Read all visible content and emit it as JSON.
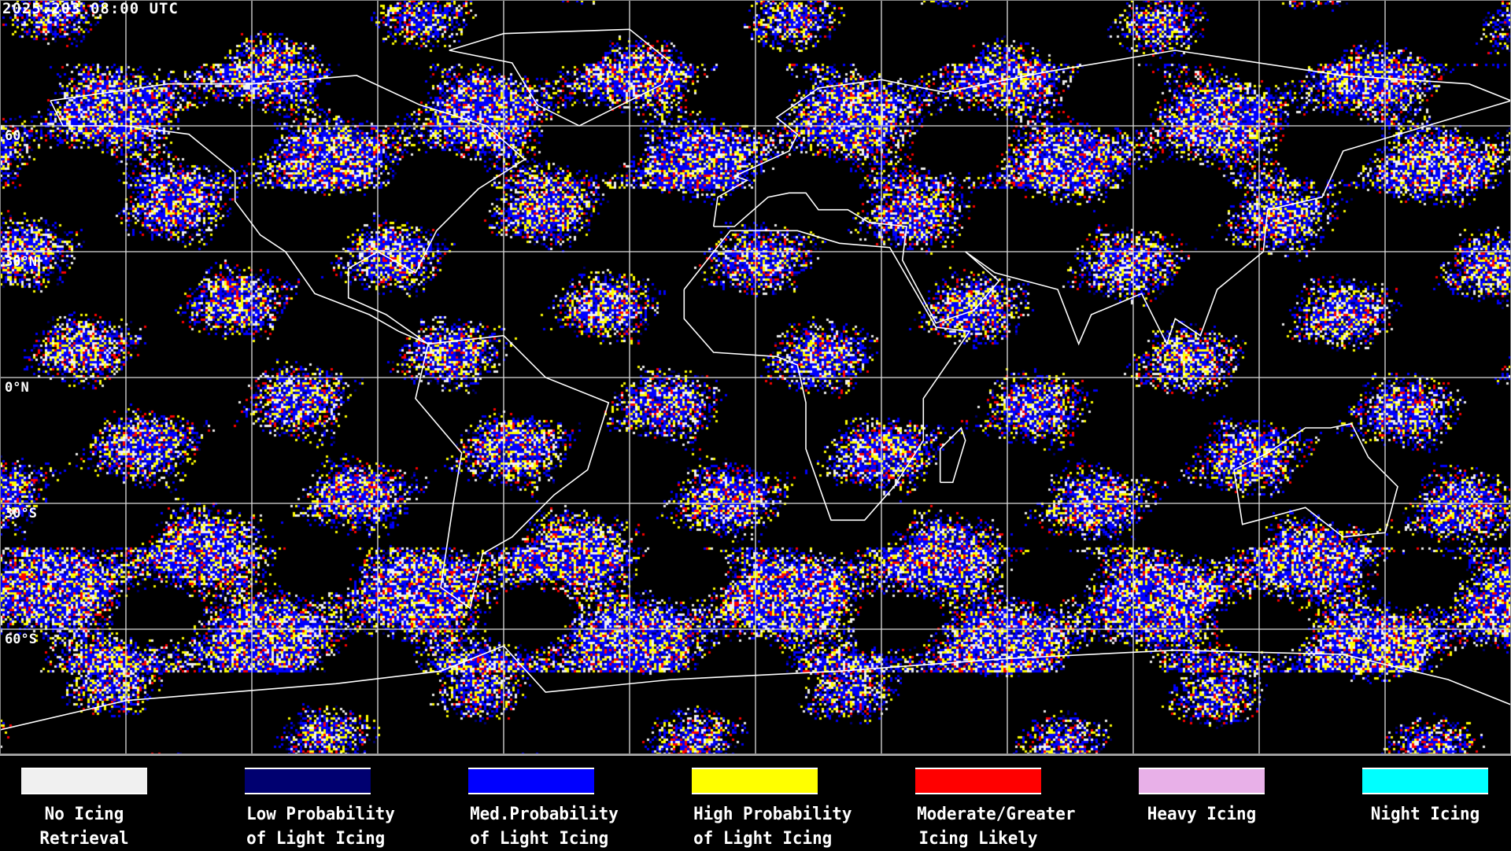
{
  "header": {
    "title": "2025.203 08:00 UTC"
  },
  "map": {
    "projection": "equirectangular",
    "graticule_spacing_deg": 30,
    "lat_labels": [
      "60",
      "30°N",
      "0°N",
      "30°S",
      "60°S"
    ]
  },
  "legend": [
    {
      "line1": "No Icing",
      "line2": "Retrieval",
      "color": "#f0f0f0"
    },
    {
      "line1": "Low Probability",
      "line2": "of Light Icing",
      "color": "#000070"
    },
    {
      "line1": "Med.Probability",
      "line2": "of Light Icing",
      "color": "#0000ff"
    },
    {
      "line1": "High Probability",
      "line2": "of Light Icing",
      "color": "#ffff00"
    },
    {
      "line1": "Moderate/Greater",
      "line2": "Icing Likely",
      "color": "#ff0000"
    },
    {
      "line1": "Heavy Icing",
      "line2": "",
      "color": "#e8b0e8"
    },
    {
      "line1": "Night Icing",
      "line2": "",
      "color": "#00ffff"
    }
  ]
}
